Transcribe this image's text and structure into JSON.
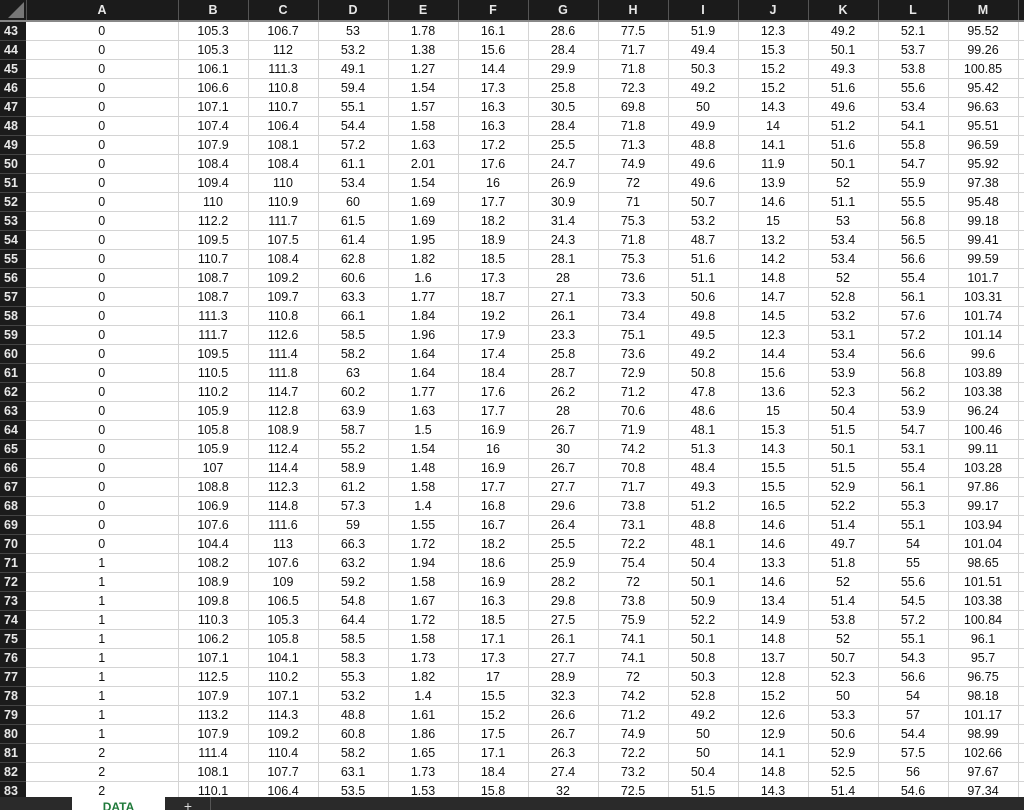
{
  "columns": [
    "A",
    "B",
    "C",
    "D",
    "E",
    "F",
    "G",
    "H",
    "I",
    "J",
    "K",
    "L",
    "M"
  ],
  "rows": [
    {
      "n": "43",
      "v": [
        "0",
        "105.3",
        "106.7",
        "53",
        "1.78",
        "16.1",
        "28.6",
        "77.5",
        "51.9",
        "12.3",
        "49.2",
        "52.1",
        "95.52"
      ]
    },
    {
      "n": "44",
      "v": [
        "0",
        "105.3",
        "112",
        "53.2",
        "1.38",
        "15.6",
        "28.4",
        "71.7",
        "49.4",
        "15.3",
        "50.1",
        "53.7",
        "99.26"
      ]
    },
    {
      "n": "45",
      "v": [
        "0",
        "106.1",
        "111.3",
        "49.1",
        "1.27",
        "14.4",
        "29.9",
        "71.8",
        "50.3",
        "15.2",
        "49.3",
        "53.8",
        "100.85"
      ]
    },
    {
      "n": "46",
      "v": [
        "0",
        "106.6",
        "110.8",
        "59.4",
        "1.54",
        "17.3",
        "25.8",
        "72.3",
        "49.2",
        "15.2",
        "51.6",
        "55.6",
        "95.42"
      ]
    },
    {
      "n": "47",
      "v": [
        "0",
        "107.1",
        "110.7",
        "55.1",
        "1.57",
        "16.3",
        "30.5",
        "69.8",
        "50",
        "14.3",
        "49.6",
        "53.4",
        "96.63"
      ]
    },
    {
      "n": "48",
      "v": [
        "0",
        "107.4",
        "106.4",
        "54.4",
        "1.58",
        "16.3",
        "28.4",
        "71.8",
        "49.9",
        "14",
        "51.2",
        "54.1",
        "95.51"
      ]
    },
    {
      "n": "49",
      "v": [
        "0",
        "107.9",
        "108.1",
        "57.2",
        "1.63",
        "17.2",
        "25.5",
        "71.3",
        "48.8",
        "14.1",
        "51.6",
        "55.8",
        "96.59"
      ]
    },
    {
      "n": "50",
      "v": [
        "0",
        "108.4",
        "108.4",
        "61.1",
        "2.01",
        "17.6",
        "24.7",
        "74.9",
        "49.6",
        "11.9",
        "50.1",
        "54.7",
        "95.92"
      ]
    },
    {
      "n": "51",
      "v": [
        "0",
        "109.4",
        "110",
        "53.4",
        "1.54",
        "16",
        "26.9",
        "72",
        "49.6",
        "13.9",
        "52",
        "55.9",
        "97.38"
      ]
    },
    {
      "n": "52",
      "v": [
        "0",
        "110",
        "110.9",
        "60",
        "1.69",
        "17.7",
        "30.9",
        "71",
        "50.7",
        "14.6",
        "51.1",
        "55.5",
        "95.48"
      ]
    },
    {
      "n": "53",
      "v": [
        "0",
        "112.2",
        "111.7",
        "61.5",
        "1.69",
        "18.2",
        "31.4",
        "75.3",
        "53.2",
        "15",
        "53",
        "56.8",
        "99.18"
      ]
    },
    {
      "n": "54",
      "v": [
        "0",
        "109.5",
        "107.5",
        "61.4",
        "1.95",
        "18.9",
        "24.3",
        "71.8",
        "48.7",
        "13.2",
        "53.4",
        "56.5",
        "99.41"
      ]
    },
    {
      "n": "55",
      "v": [
        "0",
        "110.7",
        "108.4",
        "62.8",
        "1.82",
        "18.5",
        "28.1",
        "75.3",
        "51.6",
        "14.2",
        "53.4",
        "56.6",
        "99.59"
      ]
    },
    {
      "n": "56",
      "v": [
        "0",
        "108.7",
        "109.2",
        "60.6",
        "1.6",
        "17.3",
        "28",
        "73.6",
        "51.1",
        "14.8",
        "52",
        "55.4",
        "101.7"
      ]
    },
    {
      "n": "57",
      "v": [
        "0",
        "108.7",
        "109.7",
        "63.3",
        "1.77",
        "18.7",
        "27.1",
        "73.3",
        "50.6",
        "14.7",
        "52.8",
        "56.1",
        "103.31"
      ]
    },
    {
      "n": "58",
      "v": [
        "0",
        "111.3",
        "110.8",
        "66.1",
        "1.84",
        "19.2",
        "26.1",
        "73.4",
        "49.8",
        "14.5",
        "53.2",
        "57.6",
        "101.74"
      ]
    },
    {
      "n": "59",
      "v": [
        "0",
        "111.7",
        "112.6",
        "58.5",
        "1.96",
        "17.9",
        "23.3",
        "75.1",
        "49.5",
        "12.3",
        "53.1",
        "57.2",
        "101.14"
      ]
    },
    {
      "n": "60",
      "v": [
        "0",
        "109.5",
        "111.4",
        "58.2",
        "1.64",
        "17.4",
        "25.8",
        "73.6",
        "49.2",
        "14.4",
        "53.4",
        "56.6",
        "99.6"
      ]
    },
    {
      "n": "61",
      "v": [
        "0",
        "110.5",
        "111.8",
        "63",
        "1.64",
        "18.4",
        "28.7",
        "72.9",
        "50.8",
        "15.6",
        "53.9",
        "56.8",
        "103.89"
      ]
    },
    {
      "n": "62",
      "v": [
        "0",
        "110.2",
        "114.7",
        "60.2",
        "1.77",
        "17.6",
        "26.2",
        "71.2",
        "47.8",
        "13.6",
        "52.3",
        "56.2",
        "103.38"
      ]
    },
    {
      "n": "63",
      "v": [
        "0",
        "105.9",
        "112.8",
        "63.9",
        "1.63",
        "17.7",
        "28",
        "70.6",
        "48.6",
        "15",
        "50.4",
        "53.9",
        "96.24"
      ]
    },
    {
      "n": "64",
      "v": [
        "0",
        "105.8",
        "108.9",
        "58.7",
        "1.5",
        "16.9",
        "26.7",
        "71.9",
        "48.1",
        "15.3",
        "51.5",
        "54.7",
        "100.46"
      ]
    },
    {
      "n": "65",
      "v": [
        "0",
        "105.9",
        "112.4",
        "55.2",
        "1.54",
        "16",
        "30",
        "74.2",
        "51.3",
        "14.3",
        "50.1",
        "53.1",
        "99.11"
      ]
    },
    {
      "n": "66",
      "v": [
        "0",
        "107",
        "114.4",
        "58.9",
        "1.48",
        "16.9",
        "26.7",
        "70.8",
        "48.4",
        "15.5",
        "51.5",
        "55.4",
        "103.28"
      ]
    },
    {
      "n": "67",
      "v": [
        "0",
        "108.8",
        "112.3",
        "61.2",
        "1.58",
        "17.7",
        "27.7",
        "71.7",
        "49.3",
        "15.5",
        "52.9",
        "56.1",
        "97.86"
      ]
    },
    {
      "n": "68",
      "v": [
        "0",
        "106.9",
        "114.8",
        "57.3",
        "1.4",
        "16.8",
        "29.6",
        "73.8",
        "51.2",
        "16.5",
        "52.2",
        "55.3",
        "99.17"
      ]
    },
    {
      "n": "69",
      "v": [
        "0",
        "107.6",
        "111.6",
        "59",
        "1.55",
        "16.7",
        "26.4",
        "73.1",
        "48.8",
        "14.6",
        "51.4",
        "55.1",
        "103.94"
      ]
    },
    {
      "n": "70",
      "v": [
        "0",
        "104.4",
        "113",
        "66.3",
        "1.72",
        "18.2",
        "25.5",
        "72.2",
        "48.1",
        "14.6",
        "49.7",
        "54",
        "101.04"
      ]
    },
    {
      "n": "71",
      "v": [
        "1",
        "108.2",
        "107.6",
        "63.2",
        "1.94",
        "18.6",
        "25.9",
        "75.4",
        "50.4",
        "13.3",
        "51.8",
        "55",
        "98.65"
      ]
    },
    {
      "n": "72",
      "v": [
        "1",
        "108.9",
        "109",
        "59.2",
        "1.58",
        "16.9",
        "28.2",
        "72",
        "50.1",
        "14.6",
        "52",
        "55.6",
        "101.51"
      ]
    },
    {
      "n": "73",
      "v": [
        "1",
        "109.8",
        "106.5",
        "54.8",
        "1.67",
        "16.3",
        "29.8",
        "73.8",
        "50.9",
        "13.4",
        "51.4",
        "54.5",
        "103.38"
      ]
    },
    {
      "n": "74",
      "v": [
        "1",
        "110.3",
        "105.3",
        "64.4",
        "1.72",
        "18.5",
        "27.5",
        "75.9",
        "52.2",
        "14.9",
        "53.8",
        "57.2",
        "100.84"
      ]
    },
    {
      "n": "75",
      "v": [
        "1",
        "106.2",
        "105.8",
        "58.5",
        "1.58",
        "17.1",
        "26.1",
        "74.1",
        "50.1",
        "14.8",
        "52",
        "55.1",
        "96.1"
      ]
    },
    {
      "n": "76",
      "v": [
        "1",
        "107.1",
        "104.1",
        "58.3",
        "1.73",
        "17.3",
        "27.7",
        "74.1",
        "50.8",
        "13.7",
        "50.7",
        "54.3",
        "95.7"
      ]
    },
    {
      "n": "77",
      "v": [
        "1",
        "112.5",
        "110.2",
        "55.3",
        "1.82",
        "17",
        "28.9",
        "72",
        "50.3",
        "12.8",
        "52.3",
        "56.6",
        "96.75"
      ]
    },
    {
      "n": "78",
      "v": [
        "1",
        "107.9",
        "107.1",
        "53.2",
        "1.4",
        "15.5",
        "32.3",
        "74.2",
        "52.8",
        "15.2",
        "50",
        "54",
        "98.18"
      ]
    },
    {
      "n": "79",
      "v": [
        "1",
        "113.2",
        "114.3",
        "48.8",
        "1.61",
        "15.2",
        "26.6",
        "71.2",
        "49.2",
        "12.6",
        "53.3",
        "57",
        "101.17"
      ]
    },
    {
      "n": "80",
      "v": [
        "1",
        "107.9",
        "109.2",
        "60.8",
        "1.86",
        "17.5",
        "26.7",
        "74.9",
        "50",
        "12.9",
        "50.6",
        "54.4",
        "98.99"
      ]
    },
    {
      "n": "81",
      "v": [
        "2",
        "111.4",
        "110.4",
        "58.2",
        "1.65",
        "17.1",
        "26.3",
        "72.2",
        "50",
        "14.1",
        "52.9",
        "57.5",
        "102.66"
      ]
    },
    {
      "n": "82",
      "v": [
        "2",
        "108.1",
        "107.7",
        "63.1",
        "1.73",
        "18.4",
        "27.4",
        "73.2",
        "50.4",
        "14.8",
        "52.5",
        "56",
        "97.67"
      ]
    },
    {
      "n": "83",
      "v": [
        "2",
        "110.1",
        "106.4",
        "53.5",
        "1.53",
        "15.8",
        "32",
        "72.5",
        "51.5",
        "14.3",
        "51.4",
        "54.6",
        "97.34"
      ]
    }
  ],
  "sheet_tabs": {
    "active": "DATA",
    "add_label": "+"
  },
  "colors": {
    "header_bg": "#1b1b1b",
    "active_tab_text": "#1f7a3a",
    "gridline": "#d4d4d4"
  }
}
